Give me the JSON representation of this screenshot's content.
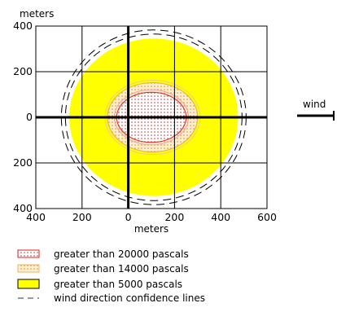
{
  "chart_data": {
    "type": "threat-zone-map",
    "x_unit_label": "meters",
    "y_unit_label": "meters",
    "xlim": [
      -400,
      600
    ],
    "ylim": [
      -400,
      400
    ],
    "x_ticks": [
      -400,
      -200,
      0,
      200,
      400,
      600
    ],
    "x_tick_labels": [
      "400",
      "200",
      "0",
      "200",
      "400",
      "600"
    ],
    "y_ticks": [
      400,
      200,
      0,
      -200,
      -400
    ],
    "y_tick_labels": [
      "400",
      "200",
      "0",
      "200",
      "400"
    ],
    "grid": true,
    "zones": [
      {
        "name": "greater than 5000 pascals",
        "color": "#FFFF00",
        "pattern": "solid",
        "shape": "ellipse",
        "cx": 110,
        "cy": 0,
        "rx": 365,
        "ry": 345
      },
      {
        "name": "greater than 14000 pascals",
        "color": "#F4C77A",
        "pattern": "dots",
        "shape": "ellipse",
        "cx": 105,
        "cy": 0,
        "rx": 195,
        "ry": 152
      },
      {
        "name": "greater than 20000 pascals",
        "color": "#FF4040",
        "pattern": "dots",
        "shape": "ellipse",
        "cx": 100,
        "cy": 0,
        "rx": 150,
        "ry": 110
      }
    ],
    "confidence_lines": {
      "name": "wind direction confidence lines",
      "style": "dashed",
      "cx": 110,
      "cy": 0,
      "rx": 382,
      "ry": 365
    },
    "wind": {
      "label": "wind",
      "direction": "right"
    }
  },
  "legend": [
    {
      "label": "greater than 20000 pascals",
      "swatch": "red-dots"
    },
    {
      "label": "greater than 14000 pascals",
      "swatch": "orange-dots"
    },
    {
      "label": "greater than 5000 pascals",
      "swatch": "yellow"
    },
    {
      "label": "wind direction confidence lines",
      "swatch": "dashed-line"
    }
  ]
}
